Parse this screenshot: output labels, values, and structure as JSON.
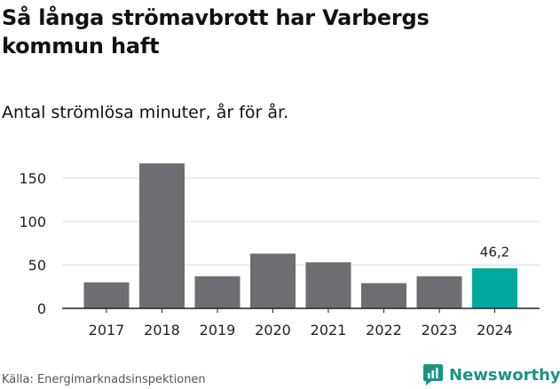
{
  "title": "Så långa strömavbrott har Varbergs kommun haft",
  "subtitle": "Antal strömlösa minuter, år för år.",
  "source": "Källa: Energimarknadsinspektionen",
  "brand": {
    "name": "Newsworthy",
    "icon": "newsworthy-logo-icon"
  },
  "colors": {
    "bar": "#6e6d72",
    "highlight": "#00a99d",
    "grid": "#dddddd",
    "axis": "#222222"
  },
  "chart_data": {
    "type": "bar",
    "title": "Så långa strömavbrott har Varbergs kommun haft",
    "subtitle": "Antal strömlösa minuter, år för år.",
    "xlabel": "",
    "ylabel": "",
    "categories": [
      "2017",
      "2018",
      "2019",
      "2020",
      "2021",
      "2022",
      "2023",
      "2024"
    ],
    "values": [
      30,
      167,
      37,
      63,
      53,
      29,
      37,
      46.2
    ],
    "highlight_index": 7,
    "data_labels": [
      {
        "index": 7,
        "text": "46,2"
      }
    ],
    "yticks": [
      0,
      50,
      100,
      150
    ],
    "ylim": [
      0,
      170
    ],
    "grid": true
  }
}
